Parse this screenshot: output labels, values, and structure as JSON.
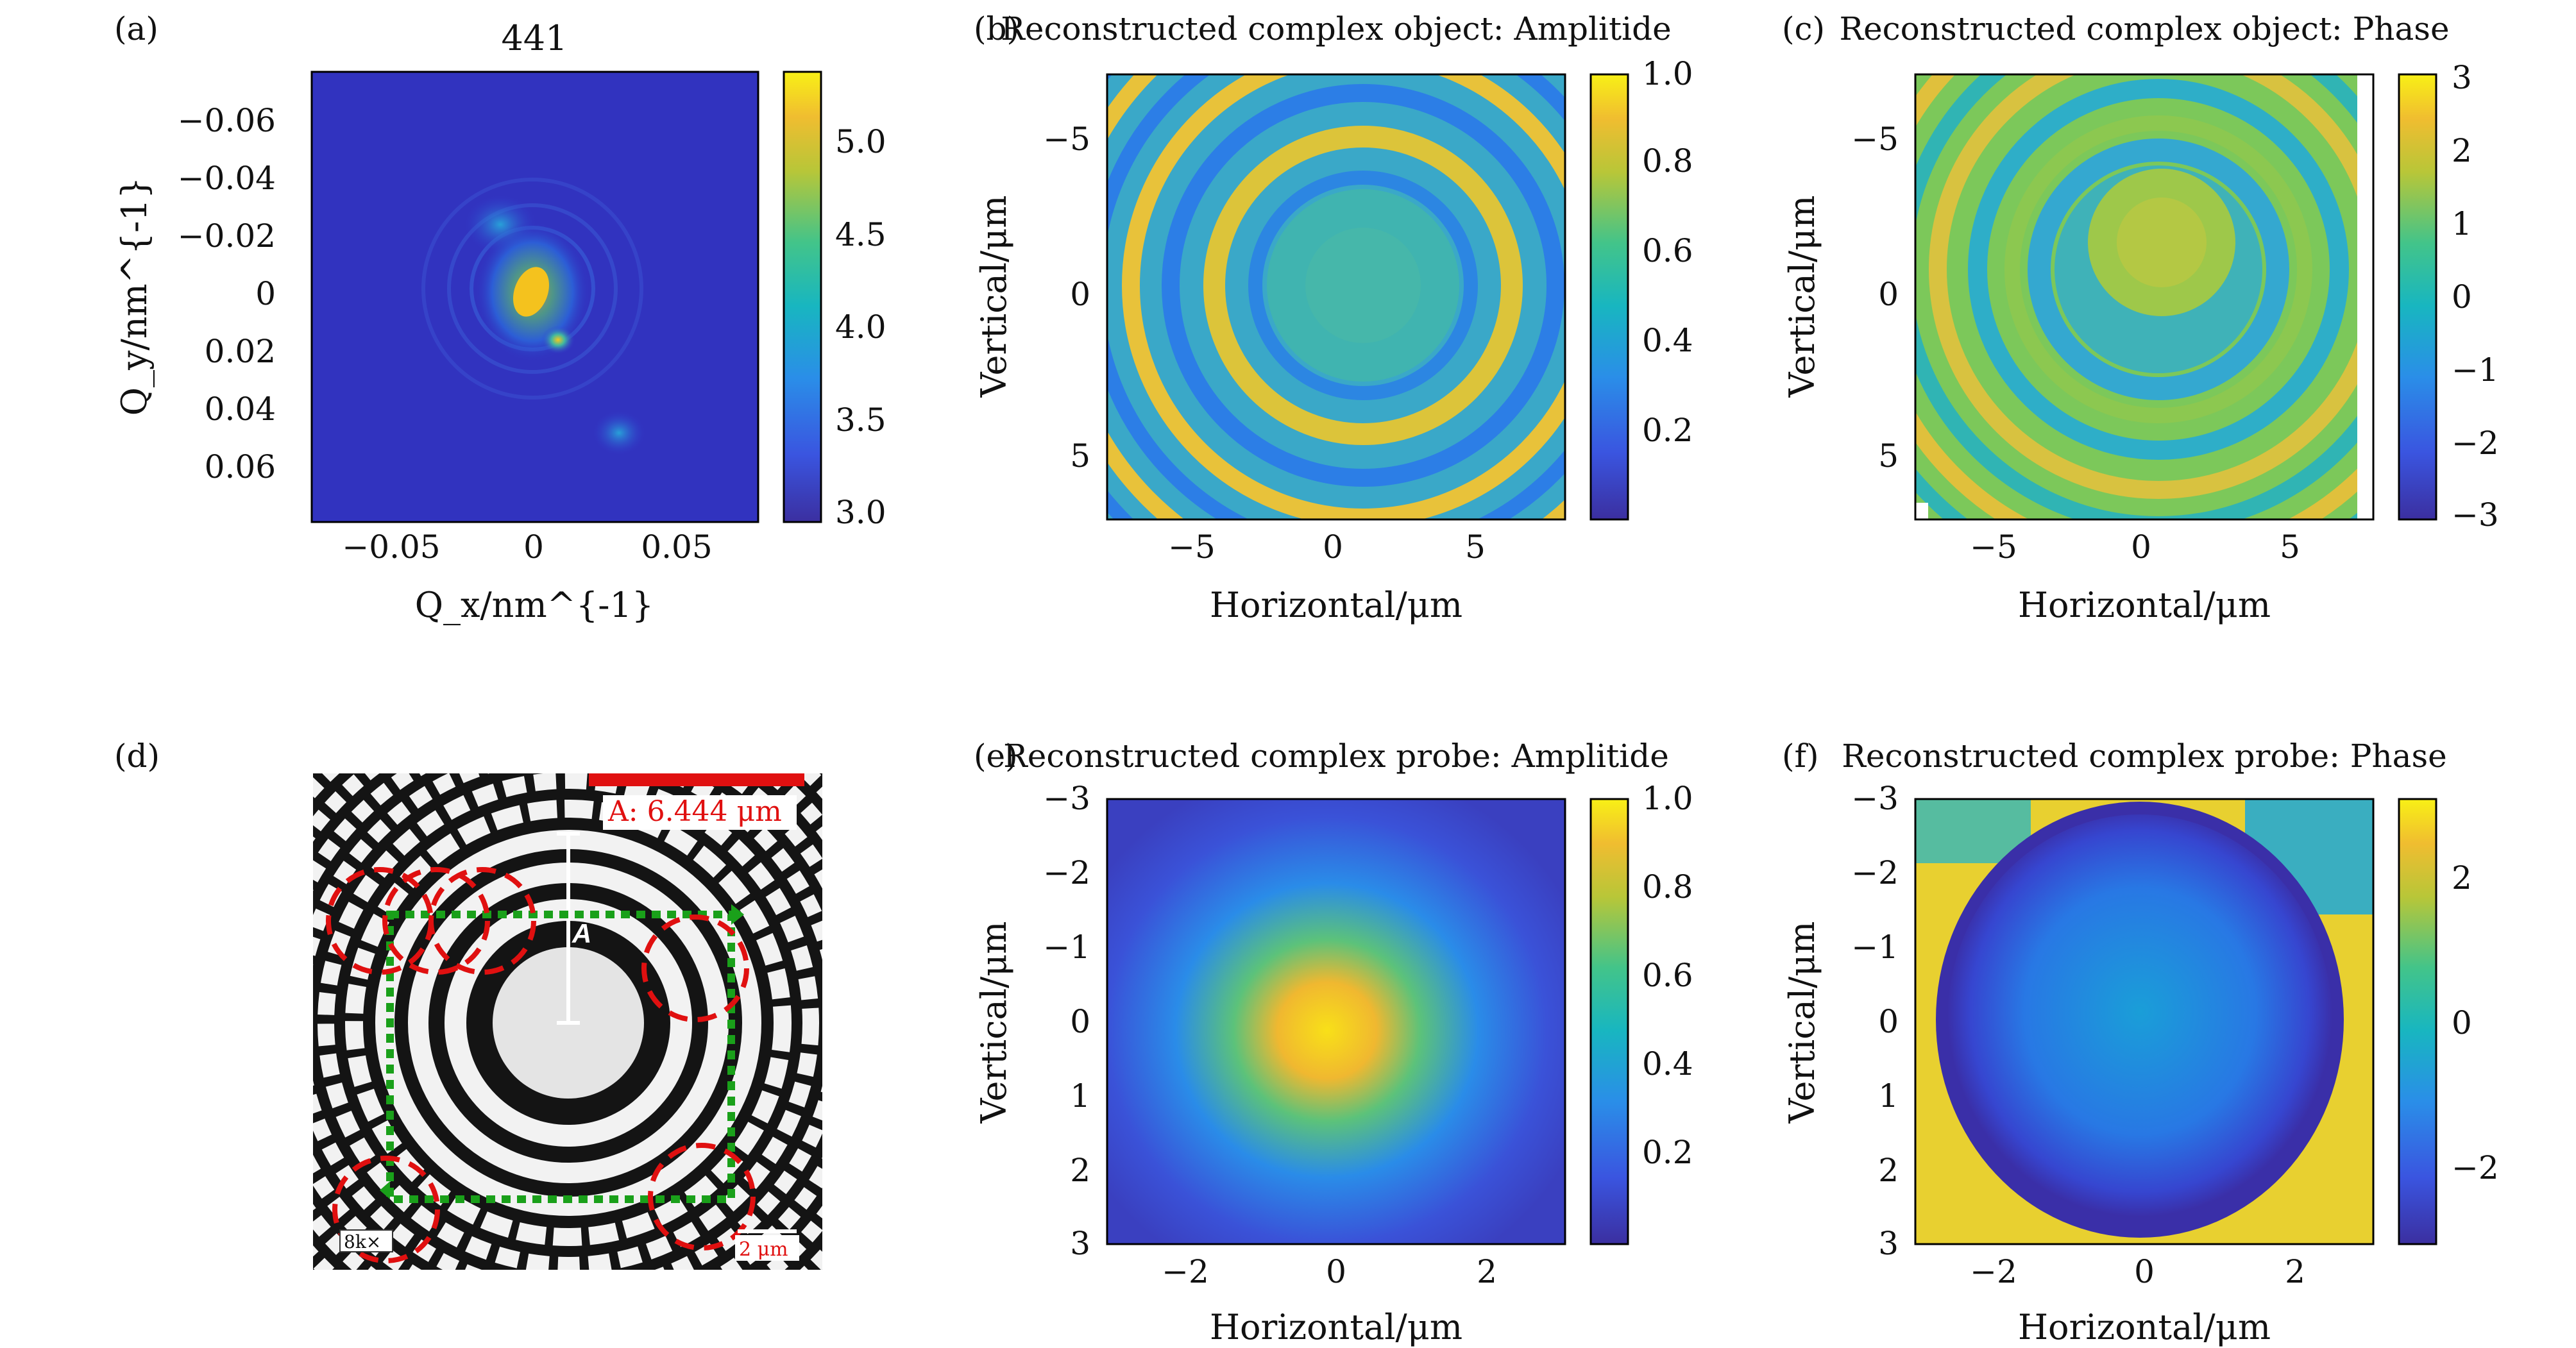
{
  "figure": {
    "panel_labels": [
      "(a)",
      "(b)",
      "(c)",
      "(d)",
      "(e)",
      "(f)"
    ],
    "panels": {
      "a": {
        "title": "441",
        "xlabel": "Q_x/nm^{-1}",
        "ylabel": "Q_y/nm^{-1}",
        "xticks": [
          "−0.05",
          "0",
          "0.05"
        ],
        "yticks": [
          "−0.06",
          "−0.04",
          "−0.02",
          "0",
          "0.02",
          "0.04",
          "0.06"
        ],
        "colorbar_ticks": [
          "5.0",
          "4.5",
          "4.0",
          "3.5",
          "3.0"
        ]
      },
      "b": {
        "title": "Reconstructed complex object: Amplitide",
        "xlabel": "Horizontal/μm",
        "ylabel": "Vertical/μm",
        "xticks": [
          "−5",
          "0",
          "5"
        ],
        "yticks": [
          "−5",
          "0",
          "5"
        ],
        "colorbar_ticks": [
          "1.0",
          "0.8",
          "0.6",
          "0.4",
          "0.2"
        ]
      },
      "c": {
        "title": "Reconstructed complex object: Phase",
        "xlabel": "Horizontal/μm",
        "ylabel": "Vertical/μm",
        "xticks": [
          "−5",
          "0",
          "5"
        ],
        "yticks": [
          "−5",
          "0",
          "5"
        ],
        "colorbar_ticks": [
          "3",
          "2",
          "1",
          "0",
          "−1",
          "−2",
          "−3"
        ]
      },
      "d": {
        "scale_text": "A: 6.444 μm",
        "marker": "A",
        "mag_label": "8k×",
        "scalebar_label": "2 μm"
      },
      "e": {
        "title": "Reconstructed complex probe: Amplitide",
        "xlabel": "Horizontal/μm",
        "ylabel": "Vertical/μm",
        "xticks": [
          "−2",
          "0",
          "2"
        ],
        "yticks": [
          "−3",
          "−2",
          "−1",
          "0",
          "1",
          "2",
          "3"
        ],
        "colorbar_ticks": [
          "1.0",
          "0.8",
          "0.6",
          "0.4",
          "0.2"
        ]
      },
      "f": {
        "title": "Reconstructed complex probe: Phase",
        "xlabel": "Horizontal/μm",
        "ylabel": "Vertical/μm",
        "xticks": [
          "−2",
          "0",
          "2"
        ],
        "yticks": [
          "−3",
          "−2",
          "−1",
          "0",
          "1",
          "2",
          "3"
        ],
        "colorbar_ticks": [
          "2",
          "0",
          "−2"
        ]
      }
    },
    "colormap": [
      "#440154",
      "#3b3bd0",
      "#2a7ee8",
      "#18b0c8",
      "#2fc398",
      "#8fcf4a",
      "#e8c22f",
      "#fde725"
    ],
    "accent_red": "#e01010",
    "accent_green": "#1aa01a"
  }
}
